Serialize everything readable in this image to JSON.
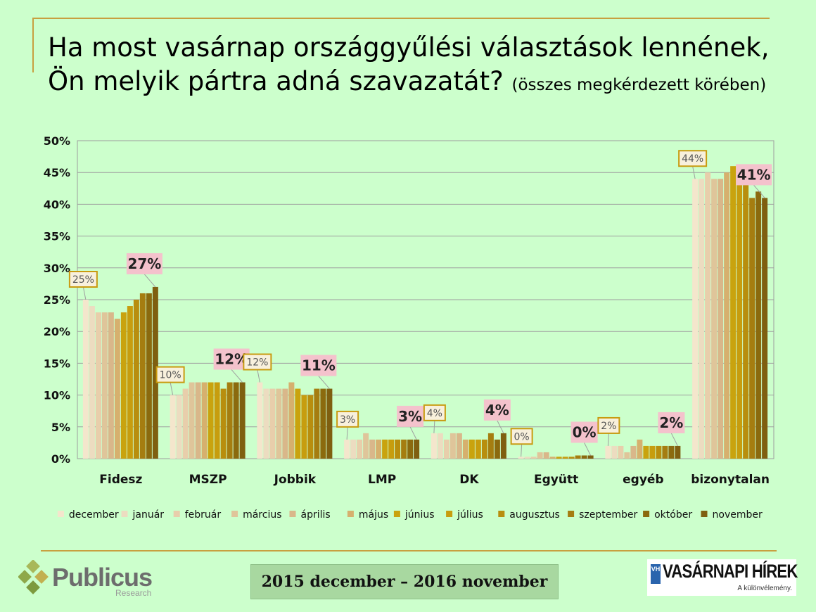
{
  "title": {
    "line1": "Ha most vasárnap országgyűlési választások lennének,",
    "line2": "Ön melyik pártra adná szavazatát?",
    "line2_small": "(összes megkérdezett körében)"
  },
  "footer": {
    "period": "2015 december – 2016 november",
    "publicus_logo": {
      "name": "Publicus",
      "sub": "Research",
      "icon": "diamond-cluster-icon"
    },
    "vh_logo": {
      "badge": "VH",
      "name": "VASÁRNAPI HÍREK",
      "tagline": "A különvélemény."
    }
  },
  "colors": {
    "background": "#ccffcc",
    "accent_rule": "#c8a040",
    "callout_fill": "#f4c2cc",
    "series": [
      "#f4e6cc",
      "#ecdcc0",
      "#e8ceab",
      "#dfc59a",
      "#d9b78a",
      "#d6b06e",
      "#c9a30e",
      "#c79d0e",
      "#b88e0e",
      "#a57d10",
      "#8b6a0e",
      "#7f5f10"
    ]
  },
  "chart_data": {
    "type": "bar",
    "categories": [
      "Fidesz",
      "MSZP",
      "Jobbik",
      "LMP",
      "DK",
      "Együtt",
      "egyéb",
      "bizonytalan"
    ],
    "ylim": [
      0,
      50
    ],
    "yticks": [
      "0%",
      "5%",
      "10%",
      "15%",
      "20%",
      "25%",
      "30%",
      "35%",
      "40%",
      "45%",
      "50%"
    ],
    "grid": true,
    "legend_position": "bottom",
    "series": [
      {
        "name": "december",
        "values": [
          25,
          10,
          12,
          3,
          4,
          0.3,
          2,
          44
        ]
      },
      {
        "name": "január",
        "values": [
          24,
          10,
          11,
          3,
          4,
          0.3,
          2,
          44
        ]
      },
      {
        "name": "február",
        "values": [
          23,
          11,
          11,
          3,
          3,
          0.3,
          2,
          45
        ]
      },
      {
        "name": "március",
        "values": [
          23,
          12,
          11,
          4,
          4,
          1,
          1,
          44
        ]
      },
      {
        "name": "április",
        "values": [
          23,
          12,
          11,
          3,
          4,
          1,
          2,
          44
        ]
      },
      {
        "name": "május",
        "values": [
          22,
          12,
          12,
          3,
          3,
          0.3,
          3,
          45
        ]
      },
      {
        "name": "június",
        "values": [
          23,
          12,
          11,
          3,
          3,
          0.3,
          2,
          46
        ]
      },
      {
        "name": "július",
        "values": [
          24,
          12,
          10,
          3,
          3,
          0.3,
          2,
          46
        ]
      },
      {
        "name": "augusztus",
        "values": [
          25,
          11,
          10,
          3,
          3,
          0.3,
          2,
          46
        ]
      },
      {
        "name": "szeptember",
        "values": [
          26,
          12,
          11,
          3,
          4,
          0.5,
          2,
          41
        ]
      },
      {
        "name": "október",
        "values": [
          26,
          12,
          11,
          3,
          3,
          0.5,
          2,
          42
        ]
      },
      {
        "name": "november",
        "values": [
          27,
          12,
          11,
          3,
          4,
          0.5,
          2,
          41
        ]
      }
    ],
    "annotations_first": [
      "25%",
      "10%",
      "12%",
      "3%",
      "4%",
      "0%",
      "2%",
      "44%"
    ],
    "annotations_last": [
      "27%",
      "12%",
      "11%",
      "3%",
      "4%",
      "0%",
      "2%",
      "41%"
    ]
  }
}
